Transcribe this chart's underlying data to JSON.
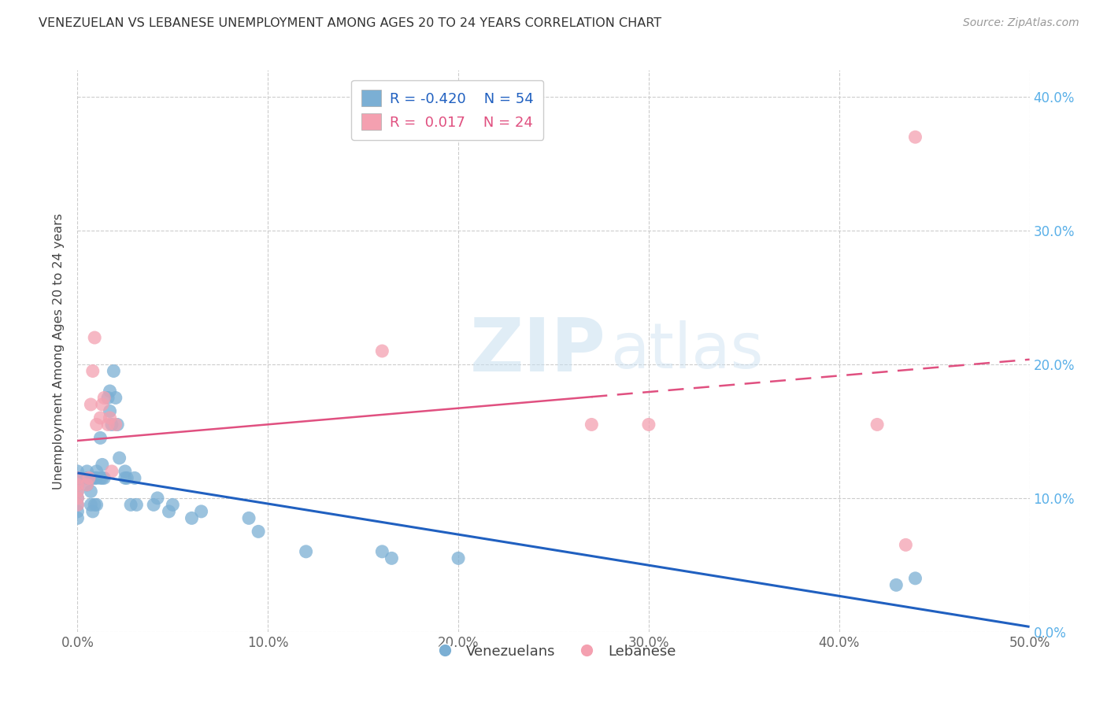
{
  "title": "VENEZUELAN VS LEBANESE UNEMPLOYMENT AMONG AGES 20 TO 24 YEARS CORRELATION CHART",
  "source": "Source: ZipAtlas.com",
  "ylabel": "Unemployment Among Ages 20 to 24 years",
  "xlim": [
    0.0,
    0.5
  ],
  "ylim": [
    0.0,
    0.42
  ],
  "xticks": [
    0.0,
    0.1,
    0.2,
    0.3,
    0.4,
    0.5
  ],
  "yticks": [
    0.0,
    0.1,
    0.2,
    0.3,
    0.4
  ],
  "ytick_labels_right": [
    "0.0%",
    "10.0%",
    "20.0%",
    "30.0%",
    "40.0%"
  ],
  "xtick_labels": [
    "0.0%",
    "10.0%",
    "20.0%",
    "30.0%",
    "40.0%",
    "50.0%"
  ],
  "venezuelan_color": "#7bafd4",
  "lebanese_color": "#f4a0b0",
  "venezuelan_R": -0.42,
  "venezuelan_N": 54,
  "lebanese_R": 0.017,
  "lebanese_N": 24,
  "venezuelan_line_color": "#2060c0",
  "lebanese_line_color": "#e05080",
  "watermark_zip": "ZIP",
  "watermark_atlas": "atlas",
  "venezuelan_x": [
    0.0,
    0.0,
    0.0,
    0.0,
    0.0,
    0.0,
    0.0,
    0.0,
    0.0,
    0.005,
    0.005,
    0.005,
    0.007,
    0.007,
    0.008,
    0.008,
    0.009,
    0.009,
    0.01,
    0.01,
    0.01,
    0.012,
    0.012,
    0.013,
    0.013,
    0.014,
    0.016,
    0.017,
    0.017,
    0.018,
    0.019,
    0.02,
    0.021,
    0.022,
    0.025,
    0.025,
    0.026,
    0.028,
    0.03,
    0.031,
    0.04,
    0.042,
    0.048,
    0.05,
    0.06,
    0.065,
    0.09,
    0.095,
    0.12,
    0.16,
    0.165,
    0.2,
    0.43,
    0.44
  ],
  "venezuelan_y": [
    0.115,
    0.11,
    0.105,
    0.1,
    0.095,
    0.09,
    0.085,
    0.115,
    0.12,
    0.11,
    0.115,
    0.12,
    0.095,
    0.105,
    0.115,
    0.09,
    0.095,
    0.115,
    0.12,
    0.115,
    0.095,
    0.145,
    0.115,
    0.115,
    0.125,
    0.115,
    0.175,
    0.165,
    0.18,
    0.155,
    0.195,
    0.175,
    0.155,
    0.13,
    0.115,
    0.12,
    0.115,
    0.095,
    0.115,
    0.095,
    0.095,
    0.1,
    0.09,
    0.095,
    0.085,
    0.09,
    0.085,
    0.075,
    0.06,
    0.06,
    0.055,
    0.055,
    0.035,
    0.04
  ],
  "lebanese_x": [
    0.0,
    0.0,
    0.0,
    0.0,
    0.0,
    0.005,
    0.006,
    0.007,
    0.008,
    0.009,
    0.01,
    0.012,
    0.013,
    0.014,
    0.016,
    0.017,
    0.018,
    0.02,
    0.16,
    0.27,
    0.3,
    0.42,
    0.435,
    0.44
  ],
  "lebanese_y": [
    0.115,
    0.11,
    0.105,
    0.1,
    0.095,
    0.11,
    0.115,
    0.17,
    0.195,
    0.22,
    0.155,
    0.16,
    0.17,
    0.175,
    0.155,
    0.16,
    0.12,
    0.155,
    0.21,
    0.155,
    0.155,
    0.155,
    0.065,
    0.37
  ]
}
